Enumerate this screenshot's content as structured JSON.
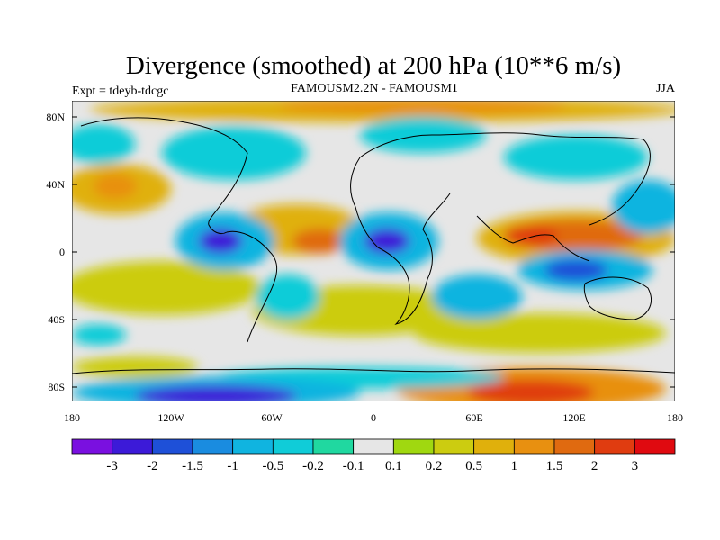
{
  "title": "Divergence (smoothed) at 200 hPa (10**6 m/s)",
  "subtitle_left": "Expt = tdeyb-tdcgc",
  "subtitle_center": "FAMOUSM2.2N - FAMOUSM1",
  "subtitle_right": "JJA",
  "axes": {
    "y_ticks": [
      "80N",
      "40N",
      "0",
      "40S",
      "80S"
    ],
    "x_ticks": [
      "180",
      "120W",
      "60W",
      "0",
      "60E",
      "120E",
      "180"
    ]
  },
  "colorbar": {
    "colors": [
      "#7a10e0",
      "#3c1ad8",
      "#1e50d8",
      "#1a8ce0",
      "#10b4e0",
      "#10ccd8",
      "#20d8a0",
      "#e6e6e6",
      "#a0d810",
      "#cccc10",
      "#e0b00c",
      "#e89010",
      "#e06a10",
      "#e03c10",
      "#e00a10"
    ],
    "labels": [
      "-3",
      "-2",
      "-1.5",
      "-1",
      "-0.5",
      "-0.2",
      "-0.1",
      "0.1",
      "0.2",
      "0.5",
      "1",
      "1.5",
      "2",
      "3"
    ]
  },
  "colors": {
    "background": "#e6e6e6",
    "coastline": "#000000"
  }
}
